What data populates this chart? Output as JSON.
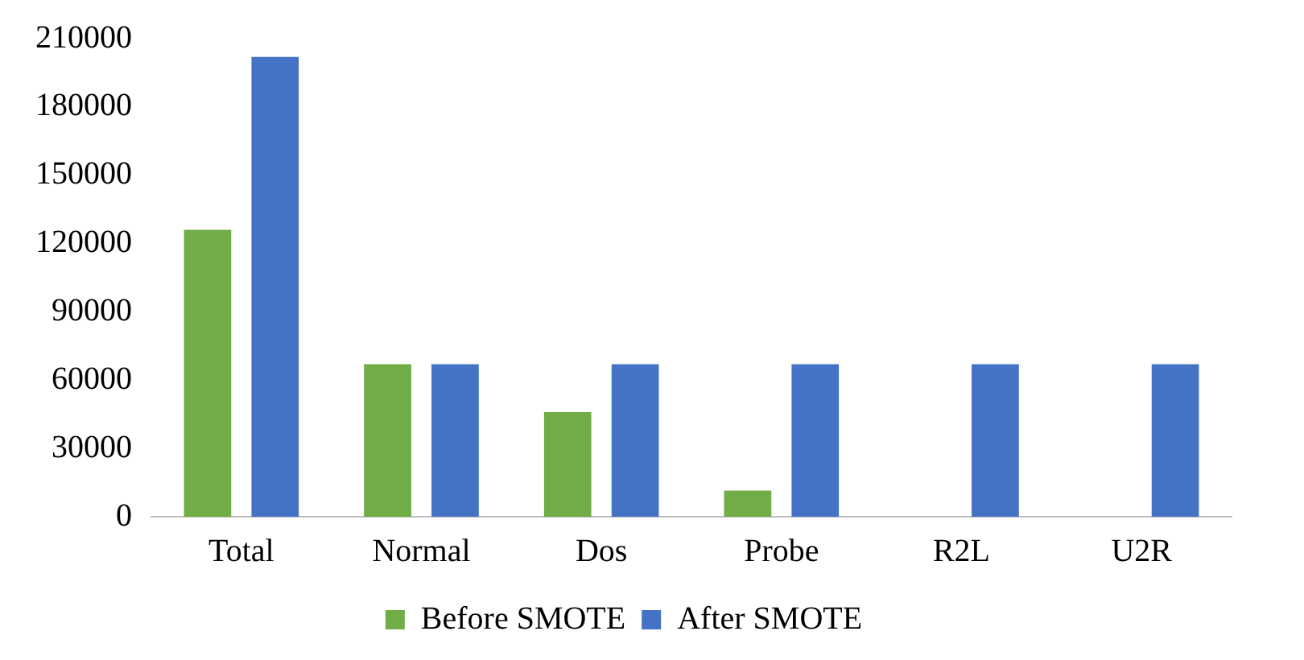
{
  "chart_data": {
    "type": "bar",
    "categories": [
      "Total",
      "Normal",
      "Dos",
      "Probe",
      "R2L",
      "U2R"
    ],
    "series": [
      {
        "name": "Before SMOTE",
        "color": "#70ad47",
        "values": [
          126000,
          67000,
          46000,
          11500,
          null,
          null
        ]
      },
      {
        "name": "After SMOTE",
        "color": "#4472c4",
        "values": [
          202000,
          67000,
          67000,
          67000,
          67000,
          67000
        ]
      }
    ],
    "ylim": [
      0,
      210000
    ],
    "yticks": [
      0,
      30000,
      60000,
      90000,
      120000,
      150000,
      180000,
      210000
    ],
    "grid": false,
    "legend": "bottom"
  }
}
